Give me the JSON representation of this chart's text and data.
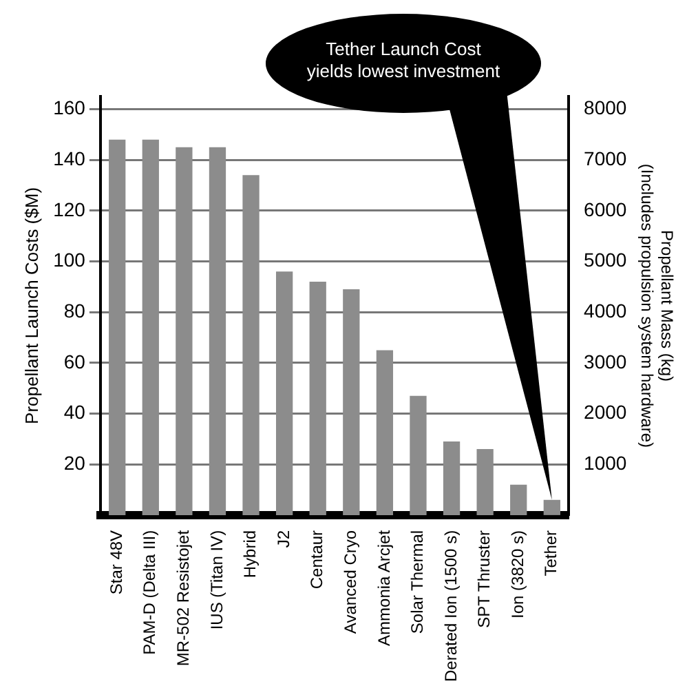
{
  "chart_data": {
    "type": "bar",
    "categories": [
      "Star 48V",
      "PAM-D (Delta III)",
      "MR-502 Resistojet",
      "IUS (Titan IV)",
      "Hybrid",
      "J2",
      "Centaur",
      "Avanced Cryo",
      "Ammonia Arcjet",
      "Solar Thermal",
      "Derated Ion (1500 s)",
      "SPT Thruster",
      "Ion (3820 s)",
      "Tether"
    ],
    "values": [
      148,
      148,
      145,
      145,
      134,
      96,
      92,
      89,
      65,
      47,
      29,
      26,
      12,
      6
    ],
    "color": "#8c8c8c",
    "ylabel": "Propellant Launch Costs ($M)",
    "y2label": "Propellant Mass (kg)\n(Includes propulsion system hardware)",
    "ylim": [
      0,
      165
    ],
    "yticks": [
      20,
      40,
      60,
      80,
      100,
      120,
      140,
      160
    ],
    "y2lim": [
      0,
      8250
    ],
    "y2ticks": [
      1000,
      2000,
      3000,
      4000,
      5000,
      6000,
      7000,
      8000
    ],
    "grid": "y",
    "legend": false,
    "annotations": [
      {
        "text": "Tether Launch Cost\nyields lowest investment",
        "x": "Tether",
        "y": 6
      }
    ]
  }
}
